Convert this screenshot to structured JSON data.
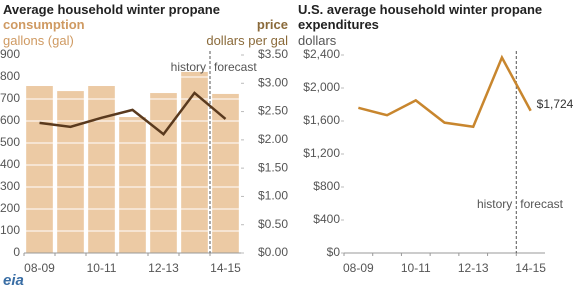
{
  "logo": "eia",
  "chart_data": [
    {
      "type": "bar",
      "title": "Average household winter propane",
      "ylabel": "gallons (gal)",
      "y2label": "dollars per gal",
      "categories": [
        "08-09",
        null,
        "10-11",
        null,
        "12-13",
        null,
        "14-15"
      ],
      "series": [
        {
          "name": "consumption",
          "type": "bar",
          "color": "#eccaa4",
          "values": [
            759,
            736,
            759,
            618,
            727,
            823,
            723
          ]
        },
        {
          "name": "price",
          "type": "line",
          "axis": "y2",
          "color": "#5a3a1e",
          "values": [
            2.3,
            2.23,
            2.39,
            2.53,
            2.1,
            2.83,
            2.37
          ]
        }
      ],
      "ylim": [
        0,
        900
      ],
      "yticks": [
        0,
        100,
        200,
        300,
        400,
        500,
        600,
        700,
        800,
        900
      ],
      "y2lim": [
        0,
        3.5
      ],
      "y2ticks": [
        {
          "value": 0,
          "label": "$0.00"
        },
        {
          "value": 0.5,
          "label": "$0.50"
        },
        {
          "value": 1,
          "label": "$1.00"
        },
        {
          "value": 1.5,
          "label": "$1.50"
        },
        {
          "value": 2,
          "label": "$2.00"
        },
        {
          "value": 2.5,
          "label": "$2.50"
        },
        {
          "value": 3,
          "label": "$3.00"
        },
        {
          "value": 3.5,
          "label": "$3.50"
        }
      ],
      "grid": true,
      "annotations": [
        "history",
        "forecast"
      ]
    },
    {
      "type": "line",
      "title": "U.S. average household winter propane expenditures",
      "ylabel": "dollars",
      "categories": [
        "08-09",
        null,
        "10-11",
        null,
        "12-13",
        null,
        "14-15"
      ],
      "series": [
        {
          "name": "expenditures",
          "color": "#c8862e",
          "values": [
            1760,
            1670,
            1850,
            1580,
            1530,
            2370,
            1724
          ],
          "value_labels": [
            null,
            null,
            null,
            null,
            null,
            null,
            "$1,724"
          ]
        }
      ],
      "ylim": [
        0,
        2400
      ],
      "yticks": [
        {
          "value": 0,
          "label": "$0"
        },
        {
          "value": 400,
          "label": "$400"
        },
        {
          "value": 800,
          "label": "$800"
        },
        {
          "value": 1200,
          "label": "$1,200"
        },
        {
          "value": 1600,
          "label": "$1,600"
        },
        {
          "value": 2000,
          "label": "$2,000"
        },
        {
          "value": 2400,
          "label": "$2,400"
        }
      ],
      "grid": false,
      "annotations": [
        "history",
        "forecast"
      ]
    }
  ]
}
